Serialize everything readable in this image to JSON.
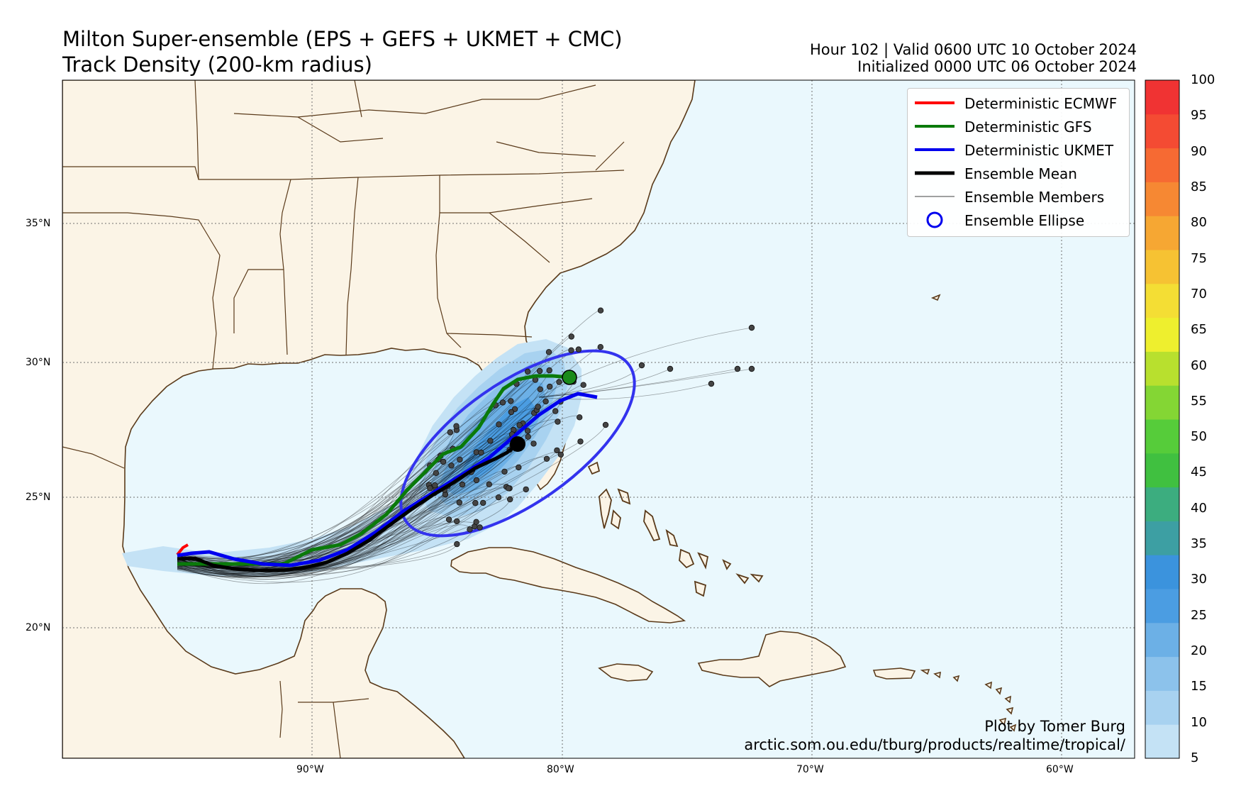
{
  "title_line1": "Milton Super-ensemble (EPS + GEFS + UKMET + CMC)",
  "title_line2": "Track Density (200-km radius)",
  "valid_line": "Hour 102 | Valid 0600 UTC 10 October 2024",
  "init_line": "Initialized 0000 UTC 06 October 2024",
  "legend": [
    {
      "label": "Deterministic ECMWF",
      "color": "#ff0000",
      "style": "thick-line"
    },
    {
      "label": "Deterministic GFS",
      "color": "#008000",
      "style": "thick-line"
    },
    {
      "label": "Deterministic UKMET",
      "color": "#0000ff",
      "style": "thick-line"
    },
    {
      "label": "Ensemble Mean",
      "color": "#000000",
      "style": "thick-line"
    },
    {
      "label": "Ensemble Members",
      "color": "#000000",
      "style": "thin-line"
    },
    {
      "label": "Ensemble Ellipse",
      "color": "#0000ff",
      "style": "circle"
    }
  ],
  "credit_line1": "Plot by Tomer Burg",
  "credit_line2": "arctic.som.ou.edu/tburg/products/realtime/tropical/",
  "lat_labels": [
    "35°N",
    "30°N",
    "25°N",
    "20°N"
  ],
  "lon_labels": [
    "90°W",
    "80°W",
    "70°W",
    "60°W"
  ],
  "colorbar": {
    "ticks": [
      "5",
      "10",
      "15",
      "20",
      "25",
      "30",
      "35",
      "40",
      "45",
      "50",
      "55",
      "60",
      "65",
      "70",
      "75",
      "80",
      "85",
      "90",
      "95",
      "100"
    ],
    "colors": [
      "#c4e2f5",
      "#a8d2f0",
      "#8cc2eb",
      "#6cb0e6",
      "#4b9de2",
      "#3b93dd",
      "#3d9fa3",
      "#3cad7f",
      "#40c040",
      "#56cc3a",
      "#84d634",
      "#b8e02e",
      "#eeef2e",
      "#f4de34",
      "#f6c233",
      "#f6a733",
      "#f68833",
      "#f66a33",
      "#f44b33",
      "#f03333"
    ]
  },
  "map_colors": {
    "land": "#fbf4e6",
    "ocean": "#eaf8fd",
    "border": "#5a3a1a"
  },
  "final_positions": {
    "ensemble_mean": [
      -81.8,
      27.0
    ],
    "gfs": [
      -79.7,
      29.5
    ]
  }
}
